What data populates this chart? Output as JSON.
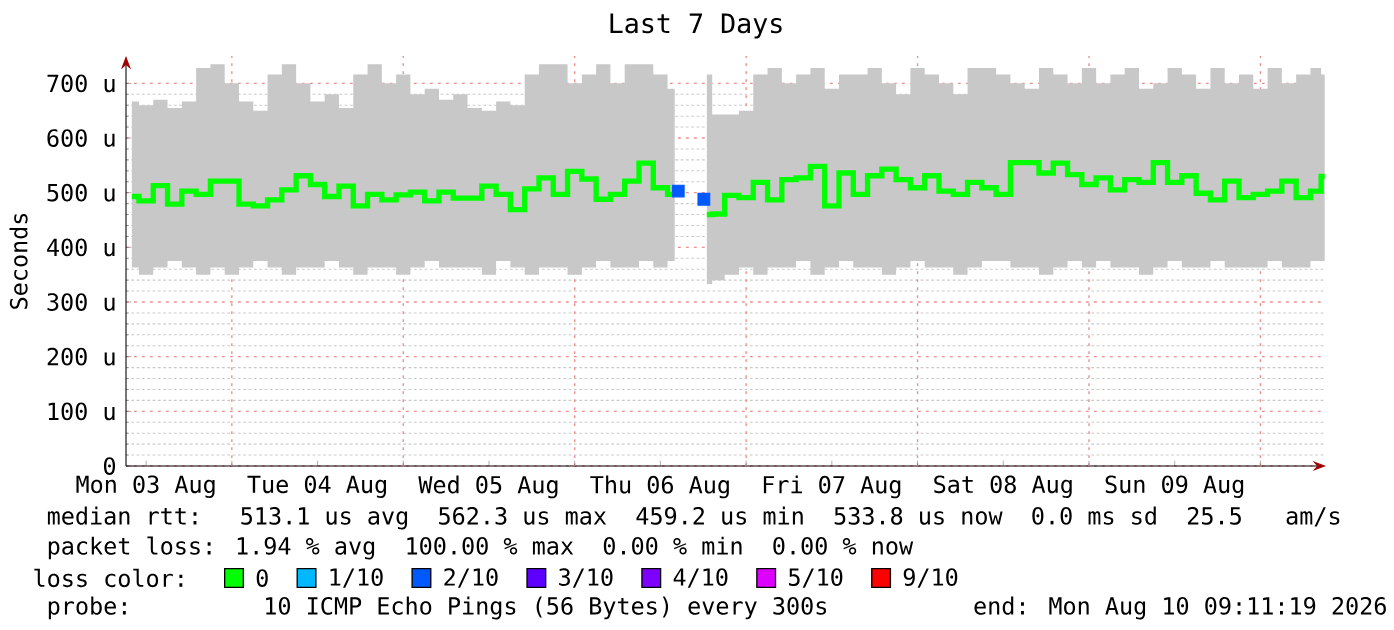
{
  "chart_data": {
    "type": "step",
    "title": "Last 7 Days",
    "ylabel": "Seconds",
    "legend_title": "loss color:",
    "legend": "bottom",
    "grid": true,
    "xlim": [
      "2026-08-03T09:11",
      "2026-08-10T09:11"
    ],
    "ylim": [
      0,
      750
    ],
    "xticks": [
      {
        "value": "2026-08-03T12:00",
        "label": "Mon 03 Aug"
      },
      {
        "value": "2026-08-04T12:00",
        "label": "Tue 04 Aug"
      },
      {
        "value": "2026-08-05T12:00",
        "label": "Wed 05 Aug"
      },
      {
        "value": "2026-08-06T12:00",
        "label": "Thu 06 Aug"
      },
      {
        "value": "2026-08-07T12:00",
        "label": "Fri 07 Aug"
      },
      {
        "value": "2026-08-08T12:00",
        "label": "Sat 08 Aug"
      },
      {
        "value": "2026-08-09T12:00",
        "label": "Sun 09 Aug"
      },
      {
        "value": "2026-08-04T00:00",
        "label": null
      },
      {
        "value": "2026-08-05T00:00",
        "label": null
      },
      {
        "value": "2026-08-06T00:00",
        "label": null
      },
      {
        "value": "2026-08-07T00:00",
        "label": null
      },
      {
        "value": "2026-08-08T00:00",
        "label": null
      },
      {
        "value": "2026-08-09T00:00",
        "label": null
      },
      {
        "value": "2026-08-10T00:00",
        "label": null
      }
    ],
    "yticks": [
      0,
      {
        "value": 100,
        "label": "100 u"
      },
      {
        "value": 200,
        "label": "200 u"
      },
      {
        "value": 300,
        "label": "300 u"
      },
      {
        "value": 400,
        "label": "400 u"
      },
      {
        "value": 500,
        "label": "500 u"
      },
      {
        "value": 600,
        "label": "600 u"
      },
      {
        "value": 700,
        "label": "700 u"
      }
    ],
    "annotations": [
      "median rtt:  513.1 us avg  562.3 us max  459.2 us min  533.8 us now  0.0 ms sd  25.5   am/s",
      "packet loss: 1.94 % avg  100.00 % max  0.00 % min  0.00 % now",
      "probe:       10 ICMP Echo Pings (56 Bytes) every 300s",
      "end: Mon Aug 10 09:11:19 2026"
    ],
    "series": [
      {
        "name": "0",
        "color": "#00ff00",
        "x": [
          "2026-08-03T10:00",
          "2026-08-03T12:00",
          "2026-08-03T14:00",
          "2026-08-03T16:00",
          "2026-08-03T18:00",
          "2026-08-03T20:00",
          "2026-08-03T22:00",
          "2026-08-04T00:00",
          "2026-08-04T02:00",
          "2026-08-04T04:00",
          "2026-08-04T06:00",
          "2026-08-04T08:00",
          "2026-08-04T10:00",
          "2026-08-04T12:00",
          "2026-08-04T14:00",
          "2026-08-04T16:00",
          "2026-08-04T18:00",
          "2026-08-04T20:00",
          "2026-08-04T22:00",
          "2026-08-05T00:00",
          "2026-08-05T02:00",
          "2026-08-05T04:00",
          "2026-08-05T06:00",
          "2026-08-05T08:00",
          "2026-08-05T10:00",
          "2026-08-05T12:00",
          "2026-08-05T14:00",
          "2026-08-05T16:00",
          "2026-08-05T18:00",
          "2026-08-05T20:00",
          "2026-08-05T22:00",
          "2026-08-06T00:00",
          "2026-08-06T02:00",
          "2026-08-06T04:00",
          "2026-08-06T06:00",
          "2026-08-06T08:00",
          "2026-08-06T10:00",
          "2026-08-06T12:00",
          "2026-08-06T14:00"
        ],
        "values": [
          493,
          485,
          513,
          479,
          503,
          497,
          521,
          521,
          479,
          476,
          487,
          505,
          531,
          515,
          493,
          512,
          476,
          497,
          487,
          496,
          501,
          485,
          501,
          490,
          490,
          512,
          497,
          469,
          507,
          527,
          497,
          539,
          525,
          488,
          497,
          521,
          554,
          509,
          497
        ],
        "upper": [
          667,
          660,
          670,
          655,
          667,
          728,
          735,
          700,
          667,
          650,
          716,
          735,
          700,
          667,
          680,
          655,
          716,
          735,
          700,
          716,
          680,
          690,
          670,
          680,
          655,
          650,
          667,
          660,
          716,
          735,
          735,
          700,
          716,
          735,
          700,
          735,
          735,
          716,
          690
        ],
        "lower": [
          363,
          350,
          363,
          375,
          363,
          350,
          363,
          350,
          363,
          375,
          363,
          350,
          363,
          363,
          375,
          363,
          350,
          363,
          363,
          350,
          363,
          375,
          363,
          363,
          363,
          350,
          375,
          363,
          350,
          363,
          363,
          350,
          363,
          375,
          363,
          363,
          375,
          363,
          375
        ]
      },
      {
        "color": "#00ff00",
        "x": [
          "2026-08-06T18:30",
          "2026-08-06T20:00",
          "2026-08-06T22:00",
          "2026-08-07T00:00",
          "2026-08-07T02:00",
          "2026-08-07T04:00",
          "2026-08-07T06:00",
          "2026-08-07T08:00",
          "2026-08-07T10:00",
          "2026-08-07T12:00",
          "2026-08-07T14:00",
          "2026-08-07T16:00",
          "2026-08-07T18:00",
          "2026-08-07T20:00",
          "2026-08-07T22:00",
          "2026-08-08T00:00",
          "2026-08-08T02:00",
          "2026-08-08T04:00",
          "2026-08-08T06:00",
          "2026-08-08T08:00",
          "2026-08-08T10:00",
          "2026-08-08T12:00",
          "2026-08-08T14:00",
          "2026-08-08T16:00",
          "2026-08-08T18:00",
          "2026-08-08T20:00",
          "2026-08-08T22:00",
          "2026-08-09T00:00",
          "2026-08-09T02:00",
          "2026-08-09T04:00",
          "2026-08-09T06:00",
          "2026-08-09T08:00",
          "2026-08-09T10:00",
          "2026-08-09T12:00",
          "2026-08-09T14:00",
          "2026-08-09T16:00",
          "2026-08-09T18:00",
          "2026-08-09T20:00",
          "2026-08-09T22:00",
          "2026-08-10T00:00",
          "2026-08-10T02:00",
          "2026-08-10T04:00",
          "2026-08-10T06:00",
          "2026-08-10T08:00",
          "2026-08-10T09:00"
        ],
        "values": [
          460,
          461,
          495,
          491,
          519,
          487,
          524,
          527,
          548,
          476,
          536,
          497,
          531,
          543,
          524,
          509,
          531,
          503,
          497,
          519,
          509,
          497,
          555,
          555,
          536,
          554,
          533,
          515,
          527,
          505,
          524,
          519,
          555,
          519,
          531,
          499,
          487,
          521,
          491,
          497,
          503,
          521,
          491,
          503,
          530
        ],
        "upper": [
          716,
          643,
          643,
          650,
          716,
          728,
          700,
          716,
          728,
          690,
          716,
          716,
          728,
          700,
          680,
          728,
          716,
          700,
          680,
          728,
          728,
          716,
          700,
          690,
          728,
          716,
          700,
          728,
          700,
          716,
          728,
          690,
          700,
          728,
          716,
          690,
          728,
          700,
          716,
          690,
          728,
          700,
          716,
          728,
          716
        ],
        "lower": [
          333,
          340,
          350,
          363,
          350,
          363,
          363,
          375,
          350,
          363,
          375,
          363,
          363,
          350,
          363,
          375,
          363,
          363,
          350,
          363,
          375,
          375,
          363,
          363,
          350,
          363,
          375,
          363,
          375,
          363,
          363,
          350,
          363,
          375,
          363,
          363,
          375,
          363,
          363,
          363,
          375,
          363,
          363,
          375,
          375
        ]
      },
      {
        "name": "1/10",
        "color": "#00b8ff"
      },
      {
        "name": "2/10",
        "color": "#0059ff",
        "type": "scatter",
        "marker": "square",
        "x": [
          "2026-08-06T14:30",
          "2026-08-06T18:05"
        ],
        "values": [
          503,
          488
        ]
      },
      {
        "name": "3/10",
        "color": "#5e00ff"
      },
      {
        "name": "4/10",
        "color": "#7e00ff"
      },
      {
        "name": "5/10",
        "color": "#dd00ff"
      },
      {
        "name": "9/10",
        "color": "#ff0000"
      }
    ]
  }
}
